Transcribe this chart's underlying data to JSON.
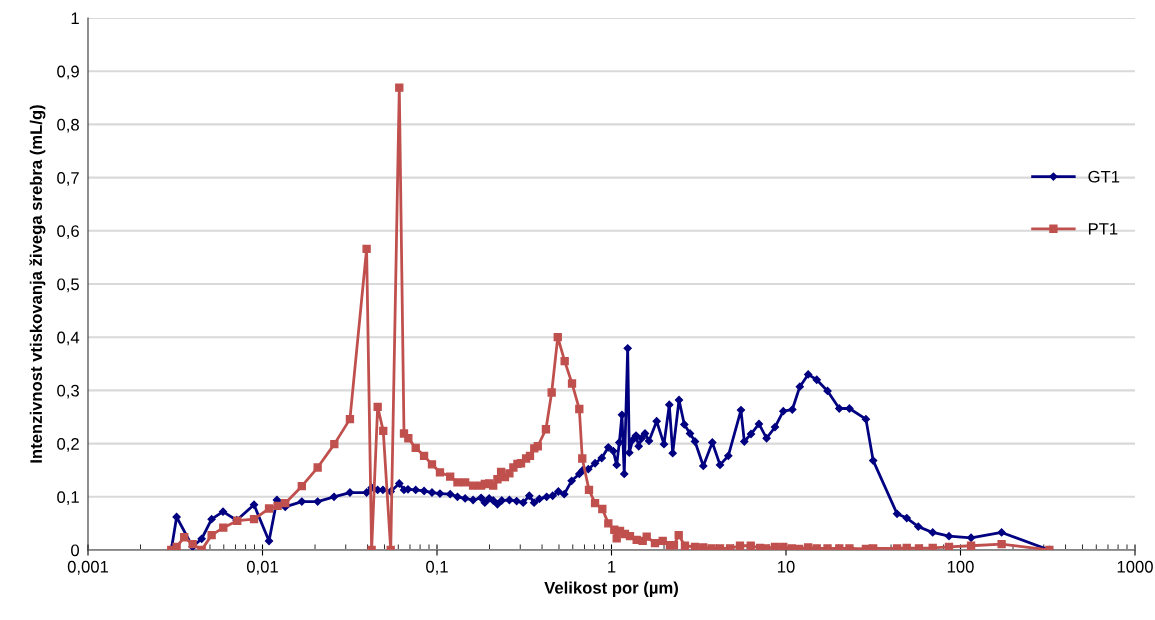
{
  "chart_data": {
    "type": "line",
    "xlabel": "Velikost por (µm)",
    "ylabel": "Intenzivnost vtiskovanja živega srebra (mL/g)",
    "log": "x",
    "xlim": [
      0.001,
      1000
    ],
    "xticks": [
      {
        "value": 0.001,
        "label": "0,001"
      },
      {
        "value": 0.01,
        "label": "0,01"
      },
      {
        "value": 0.1,
        "label": "0,1"
      },
      1,
      10,
      100,
      1000
    ],
    "ylim": [
      0,
      1
    ],
    "yticks": [
      0,
      {
        "value": 0.1,
        "label": "0,1"
      },
      {
        "value": 0.2,
        "label": "0,2"
      },
      {
        "value": 0.3,
        "label": "0,3"
      },
      {
        "value": 0.4,
        "label": "0,4"
      },
      {
        "value": 0.5,
        "label": "0,5"
      },
      {
        "value": 0.6,
        "label": "0,6"
      },
      {
        "value": 0.7,
        "label": "0,7"
      },
      {
        "value": 0.8,
        "label": "0,8"
      },
      {
        "value": 0.9,
        "label": "0,9"
      },
      1
    ],
    "grid": "y",
    "legend": "right",
    "line_style": "solid",
    "series": [
      {
        "name": "GT1",
        "color": "#000080",
        "marker": "diamond",
        "x": [
          0.003,
          0.00322,
          0.00398,
          0.00448,
          0.00511,
          0.00594,
          0.00711,
          0.00894,
          0.0109,
          0.0121,
          0.0135,
          0.0168,
          0.0207,
          0.0257,
          0.0317,
          0.0395,
          0.0422,
          0.0457,
          0.049,
          0.0543,
          0.0608,
          0.0647,
          0.0682,
          0.0755,
          0.0843,
          0.0936,
          0.104,
          0.119,
          0.131,
          0.145,
          0.161,
          0.179,
          0.188,
          0.199,
          0.21,
          0.222,
          0.235,
          0.26,
          0.286,
          0.312,
          0.338,
          0.36,
          0.386,
          0.425,
          0.46,
          0.496,
          0.536,
          0.591,
          0.654,
          0.684,
          0.736,
          0.805,
          0.879,
          0.959,
          1.024,
          1.071,
          1.109,
          1.148,
          1.183,
          1.238,
          1.265,
          1.323,
          1.382,
          1.432,
          1.489,
          1.556,
          1.64,
          1.815,
          1.999,
          2.144,
          2.243,
          2.437,
          2.614,
          2.818,
          3.009,
          3.358,
          3.783,
          4.187,
          4.67,
          5.52,
          5.77,
          6.3,
          7.0,
          7.74,
          8.65,
          9.65,
          10.87,
          12.0,
          13.4,
          15.0,
          17.3,
          20.2,
          23.1,
          28.7,
          31.6,
          43.3,
          49.2,
          57.3,
          69.3,
          85.9,
          115,
          172,
          323
        ],
        "values": [
          0,
          0.062,
          0.006,
          0.021,
          0.058,
          0.072,
          0.056,
          0.085,
          0.017,
          0.094,
          0.081,
          0.091,
          0.091,
          0.1,
          0.108,
          0.108,
          0.117,
          0.113,
          0.113,
          0.11,
          0.125,
          0.113,
          0.114,
          0.113,
          0.111,
          0.108,
          0.106,
          0.105,
          0.1,
          0.097,
          0.094,
          0.098,
          0.089,
          0.097,
          0.093,
          0.086,
          0.093,
          0.094,
          0.092,
          0.089,
          0.102,
          0.089,
          0.096,
          0.1,
          0.102,
          0.11,
          0.105,
          0.13,
          0.143,
          0.15,
          0.152,
          0.163,
          0.173,
          0.193,
          0.186,
          0.16,
          0.202,
          0.254,
          0.143,
          0.379,
          0.183,
          0.207,
          0.215,
          0.195,
          0.21,
          0.219,
          0.205,
          0.242,
          0.199,
          0.273,
          0.182,
          0.282,
          0.236,
          0.219,
          0.204,
          0.158,
          0.202,
          0.16,
          0.177,
          0.263,
          0.204,
          0.218,
          0.237,
          0.21,
          0.231,
          0.261,
          0.264,
          0.307,
          0.33,
          0.32,
          0.299,
          0.266,
          0.266,
          0.246,
          0.168,
          0.068,
          0.06,
          0.044,
          0.033,
          0.026,
          0.023,
          0.033,
          0
        ]
      },
      {
        "name": "PT1",
        "color": "#c0504d",
        "marker": "square",
        "x": [
          0.003,
          0.00322,
          0.00356,
          0.00398,
          0.00448,
          0.00511,
          0.00596,
          0.00717,
          0.00894,
          0.0109,
          0.0122,
          0.0135,
          0.0168,
          0.0207,
          0.0258,
          0.0317,
          0.0395,
          0.0422,
          0.0457,
          0.0492,
          0.0543,
          0.0608,
          0.0647,
          0.0685,
          0.0755,
          0.0843,
          0.0936,
          0.104,
          0.119,
          0.131,
          0.145,
          0.161,
          0.179,
          0.188,
          0.199,
          0.21,
          0.222,
          0.233,
          0.245,
          0.26,
          0.274,
          0.289,
          0.303,
          0.324,
          0.341,
          0.361,
          0.378,
          0.421,
          0.454,
          0.492,
          0.539,
          0.594,
          0.654,
          0.68,
          0.743,
          0.805,
          0.886,
          0.959,
          1.038,
          1.071,
          1.119,
          1.194,
          1.276,
          1.394,
          1.509,
          1.591,
          1.775,
          1.965,
          2.163,
          2.28,
          2.427,
          2.637,
          3.009,
          3.358,
          3.75,
          4.187,
          4.78,
          5.45,
          6.28,
          7.1,
          7.68,
          8.65,
          9.65,
          10.79,
          11.9,
          13.4,
          15.0,
          17.3,
          20.2,
          23.1,
          28.7,
          31.6,
          43.3,
          49.2,
          57.8,
          69.3,
          85.9,
          115,
          172,
          323
        ],
        "values": [
          0,
          0.006,
          0.024,
          0.011,
          0,
          0.028,
          0.042,
          0.055,
          0.058,
          0.078,
          0.083,
          0.088,
          0.12,
          0.155,
          0.199,
          0.246,
          0.566,
          0,
          0.269,
          0.224,
          0,
          0.869,
          0.219,
          0.21,
          0.192,
          0.177,
          0.161,
          0.146,
          0.138,
          0.127,
          0.127,
          0.121,
          0.121,
          0.124,
          0.125,
          0.121,
          0.133,
          0.147,
          0.137,
          0.144,
          0.155,
          0.162,
          0.163,
          0.172,
          0.177,
          0.191,
          0.195,
          0.227,
          0.296,
          0.4,
          0.355,
          0.313,
          0.265,
          0.172,
          0.113,
          0.088,
          0.077,
          0.05,
          0.038,
          0.022,
          0.036,
          0.03,
          0.026,
          0.019,
          0.017,
          0.025,
          0.013,
          0.017,
          0.009,
          0.009,
          0.028,
          0.008,
          0.006,
          0.005,
          0.003,
          0.003,
          0.003,
          0.008,
          0.008,
          0.004,
          0.003,
          0.006,
          0.006,
          0.003,
          0.002,
          0.005,
          0.003,
          0.003,
          0.003,
          0.003,
          0.002,
          0.003,
          0.003,
          0.004,
          0.003,
          0.004,
          0.006,
          0.008,
          0.011,
          0
        ]
      }
    ]
  }
}
